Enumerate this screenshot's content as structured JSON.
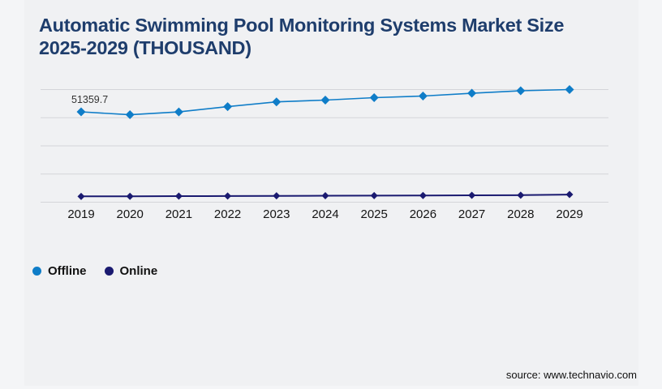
{
  "page": {
    "background": "#f4f5f7",
    "panel_background": "#f0f1f3"
  },
  "header": {
    "title_lines": [
      "Automatic Swimming Pool Monitoring Systems Market Size",
      "2025-2029 (THOUSAND)"
    ],
    "title_color": "#1e3d6c"
  },
  "chart_data": {
    "type": "line",
    "title": "Automatic Swimming Pool Monitoring Systems Market Size 2025-2029 (THOUSAND)",
    "categories": [
      "2019",
      "2020",
      "2021",
      "2022",
      "2023",
      "2024",
      "2025",
      "2026",
      "2027",
      "2028",
      "2029"
    ],
    "series": [
      {
        "name": "Offline",
        "color": "#0f7dc8",
        "marker": "diamond",
        "values": [
          51359.7,
          49700,
          51300,
          54300,
          57000,
          58000,
          59400,
          60300,
          61900,
          63300,
          64000
        ]
      },
      {
        "name": "Online",
        "color": "#1a1a70",
        "marker": "diamond",
        "values": [
          3300,
          3350,
          3450,
          3500,
          3600,
          3700,
          3750,
          3800,
          3900,
          4000,
          4350
        ]
      }
    ],
    "data_labels": [
      {
        "series": "Offline",
        "category": "2019",
        "text": "51359.7"
      }
    ],
    "ylim": [
      0,
      64000
    ],
    "y_gridline_step": 16000,
    "y_axis_labels_shown": false,
    "grid": "horizontal",
    "legend_position": "bottom-left"
  },
  "legend": {
    "items": [
      {
        "label": "Offline",
        "color": "#0f7dc8"
      },
      {
        "label": "Online",
        "color": "#1a1a70"
      }
    ]
  },
  "footer": {
    "source_text": "source: www.technavio.com"
  },
  "colors": {
    "gridline": "#d4d5d9",
    "axis_label": "#141414",
    "data_label": "#333333"
  }
}
